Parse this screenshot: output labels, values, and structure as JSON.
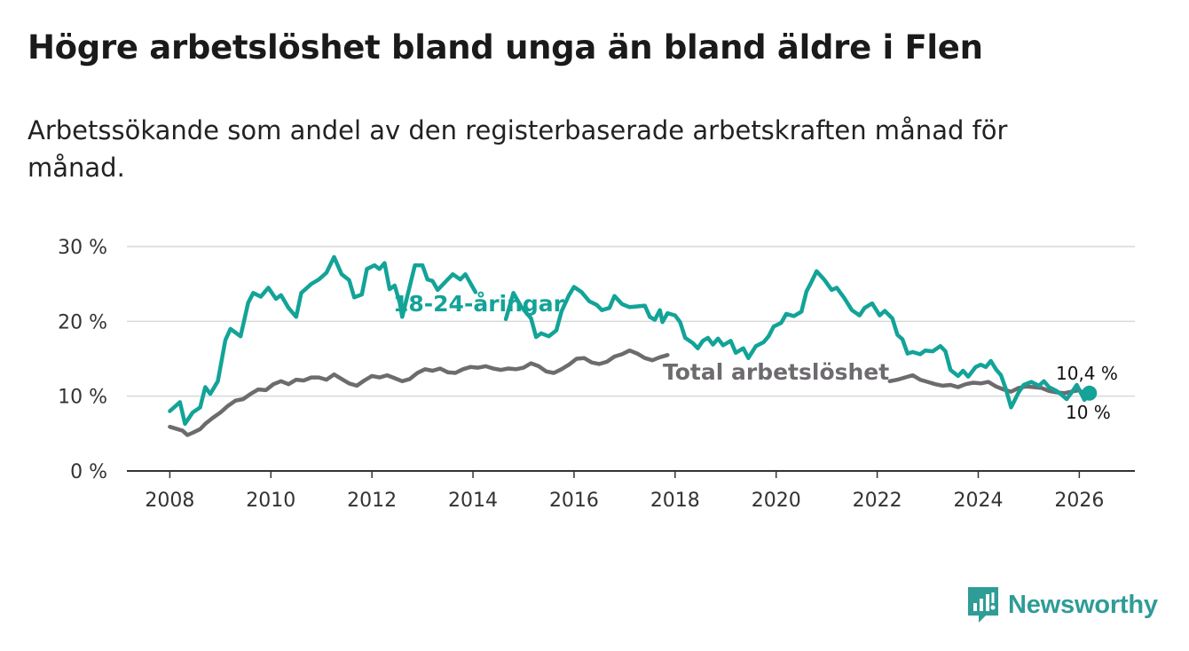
{
  "title": "Högre arbetslöshet bland unga än bland äldre i Flen",
  "subtitle": "Arbetssökande som andel av den registerbaserade arbetskraften månad för månad.",
  "brand": {
    "name": "Newsworthy",
    "icon": "newsworthy-logo-icon",
    "color": "#2f9c96"
  },
  "chart_data": {
    "type": "line",
    "title": "Högre arbetslöshet bland unga än bland äldre i Flen",
    "xlabel": "",
    "ylabel": "",
    "x_ticks": [
      2008,
      2010,
      2012,
      2014,
      2016,
      2018,
      2020,
      2022,
      2024,
      2026
    ],
    "xlim": [
      2007.15,
      2027.1
    ],
    "y_ticks": [
      0,
      10,
      20,
      30
    ],
    "y_tick_labels": [
      "0 %",
      "10 %",
      "20 %",
      "30 %"
    ],
    "ylim": [
      0,
      31
    ],
    "grid": true,
    "series": [
      {
        "name": "18-24-åringar",
        "color": "#13a398",
        "end_label": "10,4 %",
        "points": [
          [
            2008.0,
            8
          ],
          [
            2008.2,
            9.2
          ],
          [
            2008.3,
            6.3
          ],
          [
            2008.45,
            7.8
          ],
          [
            2008.6,
            8.5
          ],
          [
            2008.7,
            11.2
          ],
          [
            2008.8,
            10.3
          ],
          [
            2008.95,
            12
          ],
          [
            2009.1,
            17.5
          ],
          [
            2009.2,
            19
          ],
          [
            2009.4,
            18
          ],
          [
            2009.55,
            22.5
          ],
          [
            2009.65,
            23.8
          ],
          [
            2009.8,
            23.3
          ],
          [
            2009.95,
            24.5
          ],
          [
            2010.1,
            23
          ],
          [
            2010.2,
            23.5
          ],
          [
            2010.35,
            21.8
          ],
          [
            2010.5,
            20.6
          ],
          [
            2010.6,
            23.8
          ],
          [
            2010.8,
            25
          ],
          [
            2010.95,
            25.6
          ],
          [
            2011.1,
            26.5
          ],
          [
            2011.25,
            28.6
          ],
          [
            2011.4,
            26.3
          ],
          [
            2011.55,
            25.5
          ],
          [
            2011.65,
            23.2
          ],
          [
            2011.8,
            23.6
          ],
          [
            2011.9,
            27
          ],
          [
            2012.05,
            27.5
          ],
          [
            2012.15,
            27
          ],
          [
            2012.25,
            27.8
          ],
          [
            2012.35,
            24.3
          ],
          [
            2012.45,
            24.8
          ],
          [
            2012.55,
            22.5
          ],
          [
            2012.6,
            20.6
          ],
          [
            2012.85,
            27.5
          ],
          [
            2013.0,
            27.5
          ],
          [
            2013.1,
            25.6
          ],
          [
            2013.2,
            25.4
          ],
          [
            2013.3,
            24.2
          ],
          [
            2013.6,
            26.3
          ],
          [
            2013.75,
            25.6
          ],
          [
            2013.85,
            26.3
          ],
          [
            2014.05,
            23.9
          ],
          [
            2014.65,
            20.3
          ],
          [
            2014.8,
            23.8
          ],
          [
            2014.95,
            22
          ],
          [
            2015.15,
            20.4
          ],
          [
            2015.25,
            17.9
          ],
          [
            2015.35,
            18.4
          ],
          [
            2015.5,
            18
          ],
          [
            2015.65,
            18.8
          ],
          [
            2015.75,
            21.3
          ],
          [
            2015.9,
            23.5
          ],
          [
            2016.0,
            24.6
          ],
          [
            2016.15,
            23.9
          ],
          [
            2016.3,
            22.7
          ],
          [
            2016.45,
            22.2
          ],
          [
            2016.55,
            21.5
          ],
          [
            2016.7,
            21.8
          ],
          [
            2016.8,
            23.4
          ],
          [
            2016.95,
            22.3
          ],
          [
            2017.1,
            21.9
          ],
          [
            2017.25,
            22
          ],
          [
            2017.4,
            22.1
          ],
          [
            2017.5,
            20.6
          ],
          [
            2017.6,
            20.2
          ],
          [
            2017.7,
            21.5
          ],
          [
            2017.75,
            19.9
          ],
          [
            2017.85,
            21.1
          ],
          [
            2018.0,
            20.8
          ],
          [
            2018.1,
            19.9
          ],
          [
            2018.2,
            17.8
          ],
          [
            2018.35,
            17.1
          ],
          [
            2018.45,
            16.4
          ],
          [
            2018.55,
            17.4
          ],
          [
            2018.65,
            17.8
          ],
          [
            2018.75,
            16.9
          ],
          [
            2018.85,
            17.7
          ],
          [
            2018.95,
            16.8
          ],
          [
            2019.1,
            17.4
          ],
          [
            2019.2,
            15.8
          ],
          [
            2019.35,
            16.4
          ],
          [
            2019.45,
            15.1
          ],
          [
            2019.6,
            16.7
          ],
          [
            2019.75,
            17.2
          ],
          [
            2019.85,
            18
          ],
          [
            2019.95,
            19.3
          ],
          [
            2020.1,
            19.8
          ],
          [
            2020.2,
            21
          ],
          [
            2020.35,
            20.7
          ],
          [
            2020.5,
            21.3
          ],
          [
            2020.6,
            24
          ],
          [
            2020.7,
            25.3
          ],
          [
            2020.8,
            26.7
          ],
          [
            2020.95,
            25.6
          ],
          [
            2021.1,
            24.2
          ],
          [
            2021.2,
            24.5
          ],
          [
            2021.35,
            23.1
          ],
          [
            2021.5,
            21.5
          ],
          [
            2021.65,
            20.8
          ],
          [
            2021.75,
            21.8
          ],
          [
            2021.9,
            22.4
          ],
          [
            2022.05,
            20.8
          ],
          [
            2022.15,
            21.4
          ],
          [
            2022.3,
            20.4
          ],
          [
            2022.4,
            18.2
          ],
          [
            2022.5,
            17.6
          ],
          [
            2022.6,
            15.7
          ],
          [
            2022.7,
            15.9
          ],
          [
            2022.85,
            15.6
          ],
          [
            2022.95,
            16.1
          ],
          [
            2023.1,
            16
          ],
          [
            2023.25,
            16.7
          ],
          [
            2023.35,
            16
          ],
          [
            2023.45,
            13.5
          ],
          [
            2023.6,
            12.7
          ],
          [
            2023.7,
            13.4
          ],
          [
            2023.8,
            12.6
          ],
          [
            2023.95,
            13.9
          ],
          [
            2024.05,
            14.2
          ],
          [
            2024.15,
            13.9
          ],
          [
            2024.25,
            14.7
          ],
          [
            2024.35,
            13.6
          ],
          [
            2024.45,
            12.8
          ],
          [
            2024.55,
            10.9
          ],
          [
            2024.65,
            8.5
          ],
          [
            2024.8,
            10.5
          ],
          [
            2024.9,
            11.5
          ],
          [
            2025.05,
            11.9
          ],
          [
            2025.2,
            11.4
          ],
          [
            2025.3,
            12
          ],
          [
            2025.4,
            11.2
          ],
          [
            2025.55,
            10.7
          ],
          [
            2025.65,
            10.2
          ],
          [
            2025.75,
            9.6
          ],
          [
            2025.85,
            10.5
          ],
          [
            2025.95,
            11.5
          ],
          [
            2026.05,
            10.2
          ],
          [
            2026.1,
            9.5
          ],
          [
            2026.2,
            10.4
          ]
        ]
      },
      {
        "name": "Total arbetslöshet",
        "color": "#6e6b6f",
        "end_label": "10 %",
        "points": [
          [
            2008.0,
            5.9
          ],
          [
            2008.15,
            5.6
          ],
          [
            2008.25,
            5.4
          ],
          [
            2008.35,
            4.8
          ],
          [
            2008.45,
            5.1
          ],
          [
            2008.6,
            5.6
          ],
          [
            2008.7,
            6.3
          ],
          [
            2008.85,
            7.1
          ],
          [
            2009.0,
            7.8
          ],
          [
            2009.15,
            8.7
          ],
          [
            2009.3,
            9.4
          ],
          [
            2009.45,
            9.6
          ],
          [
            2009.6,
            10.3
          ],
          [
            2009.75,
            10.9
          ],
          [
            2009.9,
            10.8
          ],
          [
            2010.05,
            11.6
          ],
          [
            2010.2,
            12
          ],
          [
            2010.35,
            11.6
          ],
          [
            2010.5,
            12.2
          ],
          [
            2010.65,
            12.1
          ],
          [
            2010.8,
            12.5
          ],
          [
            2010.95,
            12.5
          ],
          [
            2011.1,
            12.2
          ],
          [
            2011.25,
            12.9
          ],
          [
            2011.4,
            12.3
          ],
          [
            2011.55,
            11.7
          ],
          [
            2011.7,
            11.4
          ],
          [
            2011.85,
            12.1
          ],
          [
            2012.0,
            12.7
          ],
          [
            2012.15,
            12.5
          ],
          [
            2012.3,
            12.8
          ],
          [
            2012.45,
            12.4
          ],
          [
            2012.6,
            12
          ],
          [
            2012.75,
            12.3
          ],
          [
            2012.9,
            13.1
          ],
          [
            2013.05,
            13.6
          ],
          [
            2013.2,
            13.4
          ],
          [
            2013.35,
            13.7
          ],
          [
            2013.5,
            13.2
          ],
          [
            2013.65,
            13.1
          ],
          [
            2013.8,
            13.6
          ],
          [
            2013.95,
            13.9
          ],
          [
            2014.1,
            13.8
          ],
          [
            2014.25,
            14
          ],
          [
            2014.4,
            13.7
          ],
          [
            2014.55,
            13.5
          ],
          [
            2014.7,
            13.7
          ],
          [
            2014.85,
            13.6
          ],
          [
            2015.0,
            13.8
          ],
          [
            2015.15,
            14.4
          ],
          [
            2015.3,
            14
          ],
          [
            2015.45,
            13.3
          ],
          [
            2015.6,
            13.1
          ],
          [
            2015.75,
            13.6
          ],
          [
            2015.9,
            14.2
          ],
          [
            2016.05,
            15
          ],
          [
            2016.2,
            15.1
          ],
          [
            2016.35,
            14.5
          ],
          [
            2016.5,
            14.3
          ],
          [
            2016.65,
            14.6
          ],
          [
            2016.8,
            15.3
          ],
          [
            2016.95,
            15.6
          ],
          [
            2017.1,
            16.1
          ],
          [
            2017.25,
            15.7
          ],
          [
            2017.4,
            15.1
          ],
          [
            2017.55,
            14.8
          ],
          [
            2017.7,
            15.2
          ],
          [
            2017.85,
            15.5
          ],
          [
            2022.25,
            12
          ],
          [
            2022.4,
            12.2
          ],
          [
            2022.55,
            12.5
          ],
          [
            2022.7,
            12.8
          ],
          [
            2022.85,
            12.2
          ],
          [
            2023.0,
            11.9
          ],
          [
            2023.15,
            11.6
          ],
          [
            2023.3,
            11.4
          ],
          [
            2023.45,
            11.5
          ],
          [
            2023.6,
            11.2
          ],
          [
            2023.75,
            11.6
          ],
          [
            2023.9,
            11.8
          ],
          [
            2024.05,
            11.7
          ],
          [
            2024.2,
            11.9
          ],
          [
            2024.35,
            11.3
          ],
          [
            2024.5,
            10.9
          ],
          [
            2024.65,
            10.6
          ],
          [
            2024.8,
            11.1
          ],
          [
            2024.95,
            11.3
          ],
          [
            2025.1,
            11.2
          ],
          [
            2025.25,
            11.1
          ],
          [
            2025.4,
            10.7
          ],
          [
            2025.55,
            10.5
          ],
          [
            2025.7,
            10.4
          ],
          [
            2025.85,
            10.6
          ],
          [
            2026.0,
            10.8
          ],
          [
            2026.1,
            10.3
          ],
          [
            2026.2,
            10
          ]
        ]
      }
    ]
  }
}
